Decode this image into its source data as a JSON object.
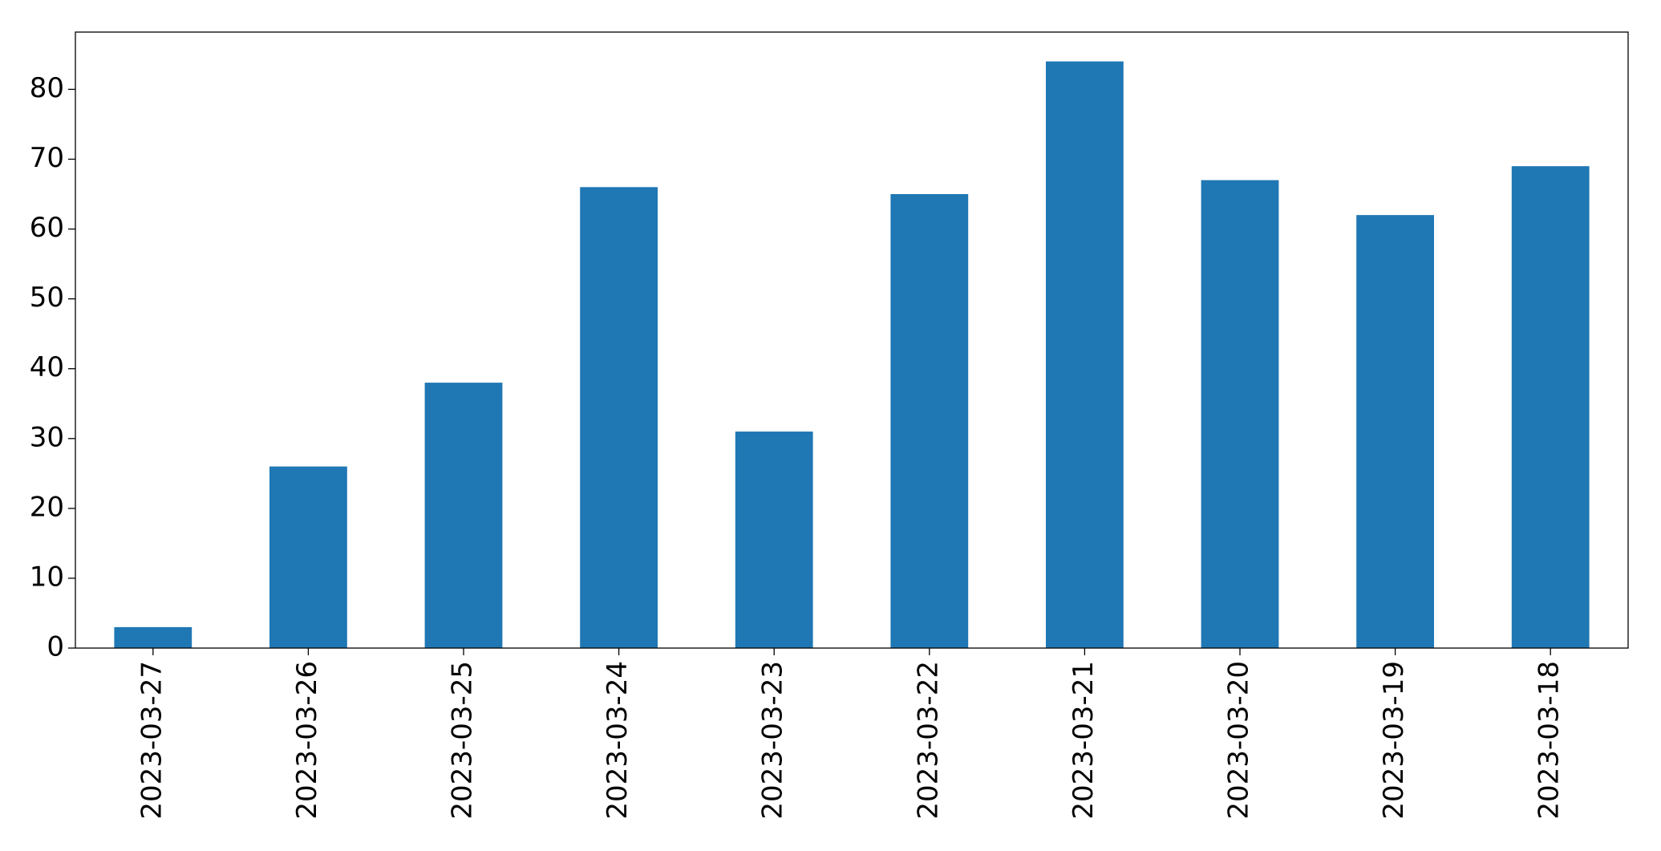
{
  "chart_data": {
    "type": "bar",
    "categories": [
      "2023-03-27",
      "2023-03-26",
      "2023-03-25",
      "2023-03-24",
      "2023-03-23",
      "2023-03-22",
      "2023-03-21",
      "2023-03-20",
      "2023-03-19",
      "2023-03-18"
    ],
    "values": [
      3,
      26,
      38,
      66,
      31,
      65,
      84,
      67,
      62,
      69
    ],
    "color": "#1f77b4",
    "ylim": [
      0,
      88.2
    ],
    "yticks": [
      0,
      10,
      20,
      30,
      40,
      50,
      60,
      70,
      80
    ],
    "grid": false
  }
}
